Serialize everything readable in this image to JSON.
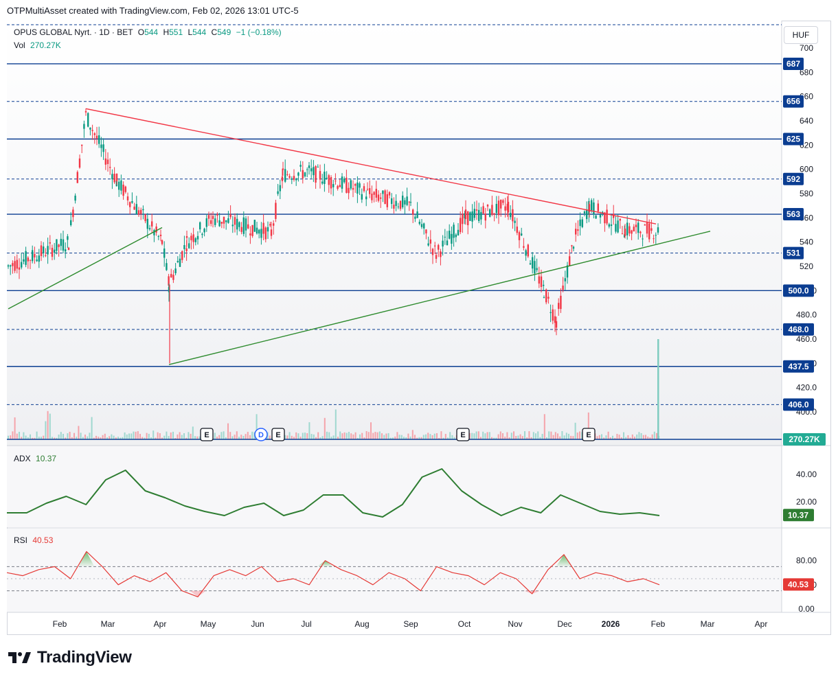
{
  "header": {
    "attribution": "OTPMultiAsset created with TradingView.com, Feb 02, 2026 13:01 UTC-5"
  },
  "legend": {
    "symbol": "OPUS GLOBAL Nyrt. · 1D · BET",
    "o_label": "O",
    "o_value": "544",
    "h_label": "H",
    "h_value": "551",
    "l_label": "L",
    "l_value": "544",
    "c_label": "C",
    "c_value": "549",
    "change": "−1 (−0.18%)",
    "vol_label": "Vol",
    "vol_value": "270.27K",
    "adx_label": "ADX",
    "adx_value": "10.37",
    "rsi_label": "RSI",
    "rsi_value": "40.53"
  },
  "currency": "HUF",
  "brand": "TradingView",
  "colors": {
    "up": "#089981",
    "down": "#f23645",
    "level": "#0b3d91",
    "resistance": "#f23645",
    "support": "#2e8b2e",
    "adx": "#2e7d32",
    "rsi": "#e53935"
  },
  "chart_data": {
    "type": "candlestick",
    "title": "OPUS GLOBAL Nyrt. · 1D · BET",
    "currency": "HUF",
    "x_months": [
      "Feb",
      "Mar",
      "Apr",
      "May",
      "Jun",
      "Jul",
      "Aug",
      "Sep",
      "Oct",
      "Nov",
      "Dec",
      "2026",
      "Feb",
      "Mar",
      "Apr"
    ],
    "price_axis_ticks": [
      "700",
      "680",
      "660",
      "640",
      "620",
      "600",
      "580",
      "560",
      "540",
      "520",
      "500.0",
      "480.0",
      "460.0",
      "440.0",
      "420.0",
      "400.0"
    ],
    "price_series": {
      "name": "OPUS GLOBAL Nyrt.",
      "points": [
        [
          "Jan 2025",
          520
        ],
        [
          "Feb 2025",
          540
        ],
        [
          "mid Feb 2025",
          645
        ],
        [
          "Mar 2025",
          590
        ],
        [
          "Apr 2025",
          540
        ],
        [
          "early Apr 2025",
          505
        ],
        [
          "mid Apr 2025",
          540
        ],
        [
          "May 2025",
          560
        ],
        [
          "Jun 2025",
          548
        ],
        [
          "mid Jun 2025",
          596
        ],
        [
          "Jul 2025",
          598
        ],
        [
          "Aug 2025",
          580
        ],
        [
          "Sep 2025",
          570
        ],
        [
          "mid Sep 2025",
          530
        ],
        [
          "Oct 2025",
          560
        ],
        [
          "Nov 2025",
          570
        ],
        [
          "mid Nov 2025",
          500
        ],
        [
          "late Nov 2025",
          475
        ],
        [
          "Dec 2025",
          540
        ],
        [
          "mid Dec 2025",
          570
        ],
        [
          "Jan 2026",
          550
        ],
        [
          "Feb 02 2026",
          549
        ]
      ]
    },
    "horizontal_levels": [
      {
        "label": "687",
        "value": 687,
        "style": "solid"
      },
      {
        "label": "656",
        "value": 656,
        "style": "dashed"
      },
      {
        "label": "625",
        "value": 625,
        "style": "solid"
      },
      {
        "label": "592",
        "value": 592,
        "style": "dashed"
      },
      {
        "label": "563",
        "value": 563,
        "style": "solid"
      },
      {
        "label": "531",
        "value": 531,
        "style": "dashed"
      },
      {
        "label": "500.0",
        "value": 500,
        "style": "solid"
      },
      {
        "label": "468.0",
        "value": 468,
        "style": "dashed"
      },
      {
        "label": "437.5",
        "value": 437.5,
        "style": "solid"
      },
      {
        "label": "406.0",
        "value": 406,
        "style": "dashed"
      }
    ],
    "trendlines": [
      {
        "name": "resistance",
        "from": [
          "mid Feb 2025",
          650
        ],
        "to": [
          "late Jan 2026",
          555
        ]
      },
      {
        "name": "support-short",
        "from": [
          "Jan 2025",
          485
        ],
        "to": [
          "Apr 2025",
          552
        ]
      },
      {
        "name": "support-long",
        "from": [
          "early Apr 2025",
          439
        ],
        "to": [
          "early Mar 2026",
          549
        ]
      }
    ],
    "volume": {
      "last_label": "270.27K",
      "event_markers": [
        "E",
        "D",
        "E",
        "E",
        "E"
      ]
    },
    "adx": {
      "last_label": "10.37",
      "ticks": [
        "40.00",
        "20.00"
      ],
      "values": [
        12,
        12,
        19,
        24,
        18,
        36,
        43,
        28,
        23,
        17,
        13,
        10,
        16,
        19,
        10,
        14,
        25,
        25,
        12,
        9,
        18,
        38,
        44,
        28,
        18,
        10,
        16,
        12,
        25,
        19,
        13,
        11,
        12,
        10
      ]
    },
    "rsi": {
      "last_label": "40.53",
      "ticks": [
        "80.00",
        "40.00",
        "0.00"
      ],
      "band": [
        30,
        70
      ],
      "values": [
        60,
        55,
        65,
        70,
        50,
        95,
        70,
        40,
        55,
        45,
        60,
        30,
        20,
        55,
        65,
        55,
        70,
        45,
        50,
        40,
        80,
        65,
        55,
        40,
        60,
        50,
        30,
        70,
        60,
        55,
        40,
        60,
        50,
        25,
        65,
        90,
        50,
        60,
        55,
        45,
        50,
        40
      ]
    }
  }
}
